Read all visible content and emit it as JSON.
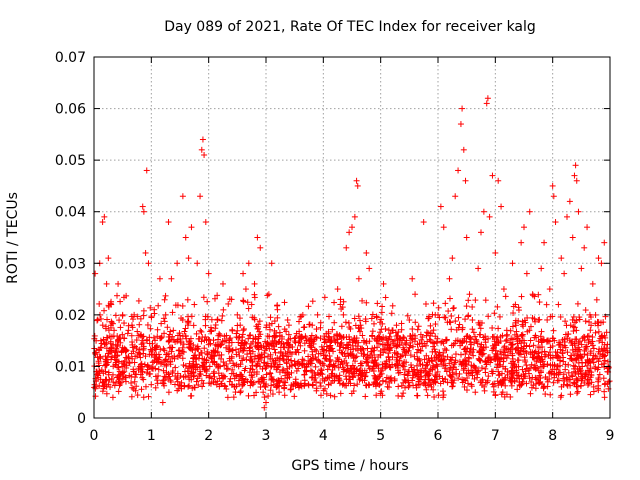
{
  "chart_data": {
    "type": "scatter",
    "title": "Day 089 of 2021, Rate Of TEC Index for receiver kalg",
    "xlabel": "GPS time / hours",
    "ylabel": "ROTI / TECUs",
    "xlim": [
      0,
      9
    ],
    "ylim": [
      0,
      0.07
    ],
    "x_ticks": [
      "0",
      "1",
      "2",
      "3",
      "4",
      "5",
      "6",
      "7",
      "8",
      "9"
    ],
    "y_ticks": [
      "0",
      "0.01",
      "0.02",
      "0.03",
      "0.04",
      "0.05",
      "0.06",
      "0.07"
    ],
    "grid": true,
    "marker": "+",
    "marker_color": "#ff0000",
    "series": [
      {
        "name": "ROTI",
        "points": [
          [
            0.02,
            0.028
          ],
          [
            0.05,
            0.009
          ],
          [
            0.08,
            0.011
          ],
          [
            0.1,
            0.03
          ],
          [
            0.12,
            0.015
          ],
          [
            0.15,
            0.038
          ],
          [
            0.18,
            0.039
          ],
          [
            0.2,
            0.012
          ],
          [
            0.22,
            0.026
          ],
          [
            0.25,
            0.031
          ],
          [
            0.28,
            0.006
          ],
          [
            0.3,
            0.022
          ],
          [
            0.33,
            0.004
          ],
          [
            0.35,
            0.017
          ],
          [
            0.4,
            0.012
          ],
          [
            0.42,
            0.026
          ],
          [
            0.45,
            0.009
          ],
          [
            0.5,
            0.02
          ],
          [
            0.55,
            0.013
          ],
          [
            0.6,
            0.017
          ],
          [
            0.65,
            0.008
          ],
          [
            0.7,
            0.02
          ],
          [
            0.75,
            0.012
          ],
          [
            0.8,
            0.01
          ],
          [
            0.85,
            0.041
          ],
          [
            0.87,
            0.04
          ],
          [
            0.9,
            0.032
          ],
          [
            0.92,
            0.048
          ],
          [
            0.95,
            0.03
          ],
          [
            1.0,
            0.013
          ],
          [
            1.05,
            0.021
          ],
          [
            1.1,
            0.014
          ],
          [
            1.15,
            0.027
          ],
          [
            1.2,
            0.003
          ],
          [
            1.25,
            0.02
          ],
          [
            1.3,
            0.038
          ],
          [
            1.35,
            0.027
          ],
          [
            1.4,
            0.012
          ],
          [
            1.45,
            0.03
          ],
          [
            1.5,
            0.016
          ],
          [
            1.55,
            0.043
          ],
          [
            1.6,
            0.035
          ],
          [
            1.65,
            0.031
          ],
          [
            1.7,
            0.037
          ],
          [
            1.75,
            0.022
          ],
          [
            1.8,
            0.03
          ],
          [
            1.85,
            0.043
          ],
          [
            1.88,
            0.052
          ],
          [
            1.9,
            0.054
          ],
          [
            1.92,
            0.051
          ],
          [
            1.95,
            0.038
          ],
          [
            2.0,
            0.028
          ],
          [
            2.05,
            0.017
          ],
          [
            2.1,
            0.012
          ],
          [
            2.15,
            0.019
          ],
          [
            2.2,
            0.01
          ],
          [
            2.25,
            0.026
          ],
          [
            2.3,
            0.015
          ],
          [
            2.4,
            0.023
          ],
          [
            2.5,
            0.02
          ],
          [
            2.55,
            0.018
          ],
          [
            2.6,
            0.028
          ],
          [
            2.65,
            0.025
          ],
          [
            2.7,
            0.03
          ],
          [
            2.75,
            0.022
          ],
          [
            2.8,
            0.026
          ],
          [
            2.85,
            0.035
          ],
          [
            2.9,
            0.033
          ],
          [
            2.95,
            0.005
          ],
          [
            2.97,
            0.002
          ],
          [
            3.0,
            0.003
          ],
          [
            3.05,
            0.024
          ],
          [
            3.1,
            0.03
          ],
          [
            3.15,
            0.016
          ],
          [
            3.2,
            0.021
          ],
          [
            3.3,
            0.012
          ],
          [
            3.4,
            0.018
          ],
          [
            3.5,
            0.011
          ],
          [
            3.6,
            0.014
          ],
          [
            3.7,
            0.009
          ],
          [
            3.8,
            0.016
          ],
          [
            3.9,
            0.02
          ],
          [
            4.0,
            0.013
          ],
          [
            4.1,
            0.01
          ],
          [
            4.2,
            0.015
          ],
          [
            4.25,
            0.025
          ],
          [
            4.3,
            0.023
          ],
          [
            4.35,
            0.02
          ],
          [
            4.4,
            0.033
          ],
          [
            4.45,
            0.036
          ],
          [
            4.5,
            0.037
          ],
          [
            4.55,
            0.039
          ],
          [
            4.58,
            0.046
          ],
          [
            4.6,
            0.045
          ],
          [
            4.62,
            0.027
          ],
          [
            4.65,
            0.018
          ],
          [
            4.7,
            0.012
          ],
          [
            4.75,
            0.032
          ],
          [
            4.8,
            0.029
          ],
          [
            4.85,
            0.016
          ],
          [
            4.9,
            0.01
          ],
          [
            5.0,
            0.013
          ],
          [
            5.05,
            0.026
          ],
          [
            5.1,
            0.011
          ],
          [
            5.2,
            0.017
          ],
          [
            5.3,
            0.014
          ],
          [
            5.4,
            0.01
          ],
          [
            5.5,
            0.019
          ],
          [
            5.55,
            0.027
          ],
          [
            5.6,
            0.024
          ],
          [
            5.7,
            0.013
          ],
          [
            5.75,
            0.038
          ],
          [
            5.8,
            0.016
          ],
          [
            5.9,
            0.011
          ],
          [
            6.0,
            0.02
          ],
          [
            6.05,
            0.041
          ],
          [
            6.1,
            0.037
          ],
          [
            6.15,
            0.015
          ],
          [
            6.2,
            0.027
          ],
          [
            6.25,
            0.031
          ],
          [
            6.3,
            0.043
          ],
          [
            6.35,
            0.048
          ],
          [
            6.4,
            0.057
          ],
          [
            6.42,
            0.06
          ],
          [
            6.45,
            0.052
          ],
          [
            6.48,
            0.046
          ],
          [
            6.5,
            0.035
          ],
          [
            6.55,
            0.024
          ],
          [
            6.6,
            0.019
          ],
          [
            6.65,
            0.005
          ],
          [
            6.7,
            0.029
          ],
          [
            6.75,
            0.036
          ],
          [
            6.8,
            0.04
          ],
          [
            6.85,
            0.061
          ],
          [
            6.87,
            0.062
          ],
          [
            6.9,
            0.039
          ],
          [
            6.95,
            0.047
          ],
          [
            7.0,
            0.032
          ],
          [
            7.05,
            0.046
          ],
          [
            7.1,
            0.041
          ],
          [
            7.15,
            0.025
          ],
          [
            7.2,
            0.017
          ],
          [
            7.3,
            0.03
          ],
          [
            7.35,
            0.022
          ],
          [
            7.4,
            0.013
          ],
          [
            7.45,
            0.034
          ],
          [
            7.5,
            0.037
          ],
          [
            7.55,
            0.028
          ],
          [
            7.6,
            0.04
          ],
          [
            7.65,
            0.024
          ],
          [
            7.7,
            0.016
          ],
          [
            7.75,
            0.019
          ],
          [
            7.8,
            0.029
          ],
          [
            7.85,
            0.034
          ],
          [
            7.9,
            0.015
          ],
          [
            7.95,
            0.025
          ],
          [
            8.0,
            0.045
          ],
          [
            8.02,
            0.043
          ],
          [
            8.05,
            0.038
          ],
          [
            8.1,
            0.022
          ],
          [
            8.15,
            0.031
          ],
          [
            8.2,
            0.028
          ],
          [
            8.25,
            0.039
          ],
          [
            8.3,
            0.042
          ],
          [
            8.35,
            0.035
          ],
          [
            8.38,
            0.047
          ],
          [
            8.4,
            0.049
          ],
          [
            8.42,
            0.046
          ],
          [
            8.45,
            0.04
          ],
          [
            8.5,
            0.029
          ],
          [
            8.55,
            0.033
          ],
          [
            8.6,
            0.037
          ],
          [
            8.65,
            0.02
          ],
          [
            8.7,
            0.026
          ],
          [
            8.75,
            0.012
          ],
          [
            8.8,
            0.031
          ],
          [
            8.85,
            0.03
          ],
          [
            8.9,
            0.034
          ],
          [
            8.95,
            0.013
          ],
          [
            8.97,
            0.007
          ]
        ]
      }
    ]
  }
}
